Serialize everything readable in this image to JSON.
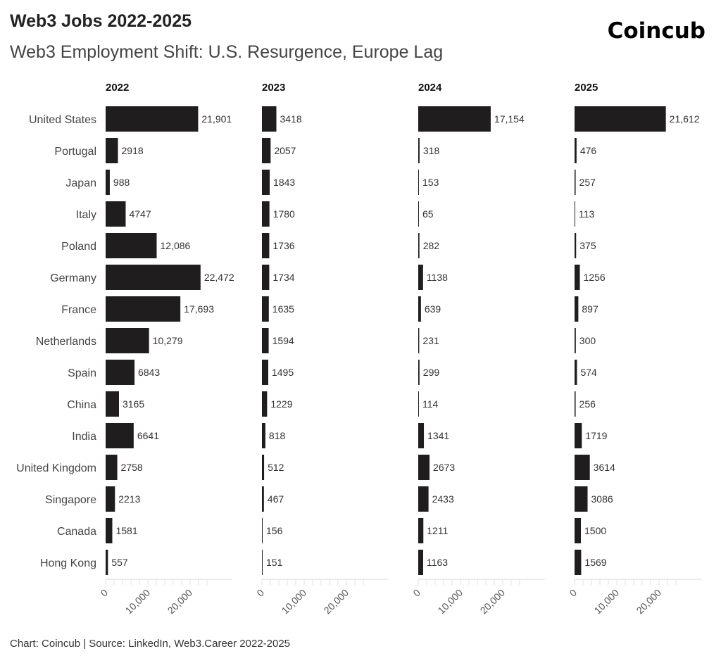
{
  "header": {
    "title": "Web3 Jobs 2022-2025",
    "subtitle": "Web3 Employment Shift: U.S. Resurgence, Europe Lag",
    "logo": "Coincub"
  },
  "footer": "Chart: Coincub | Source: LinkedIn, Web3.Career 2022-2025",
  "chart_data": {
    "type": "bar",
    "orientation": "horizontal",
    "bar_color": "#1f1d1e",
    "categories": [
      "United States",
      "Portugal",
      "Japan",
      "Italy",
      "Poland",
      "Germany",
      "France",
      "Netherlands",
      "Spain",
      "China",
      "India",
      "United Kingdom",
      "Singapore",
      "Canada",
      "Hong Kong"
    ],
    "panels": [
      {
        "name": "2022",
        "values": [
          21901,
          2918,
          988,
          4747,
          12086,
          22472,
          17693,
          10279,
          6843,
          3165,
          6641,
          2758,
          2213,
          1581,
          557
        ],
        "labels": [
          "21,901",
          "2918",
          "988",
          "4747",
          "12,086",
          "22,472",
          "17,693",
          "10,279",
          "6843",
          "3165",
          "6641",
          "2758",
          "2213",
          "1581",
          "557"
        ]
      },
      {
        "name": "2023",
        "values": [
          3418,
          2057,
          1843,
          1780,
          1736,
          1734,
          1635,
          1594,
          1495,
          1229,
          818,
          512,
          467,
          156,
          151
        ],
        "labels": [
          "3418",
          "2057",
          "1843",
          "1780",
          "1736",
          "1734",
          "1635",
          "1594",
          "1495",
          "1229",
          "818",
          "512",
          "467",
          "156",
          "151"
        ]
      },
      {
        "name": "2024",
        "values": [
          17154,
          318,
          153,
          65,
          282,
          1138,
          639,
          231,
          299,
          114,
          1341,
          2673,
          2433,
          1211,
          1163
        ],
        "labels": [
          "17,154",
          "318",
          "153",
          "65",
          "282",
          "1138",
          "639",
          "231",
          "299",
          "114",
          "1341",
          "2673",
          "2433",
          "1211",
          "1163"
        ]
      },
      {
        "name": "2025",
        "values": [
          21612,
          476,
          257,
          113,
          375,
          1256,
          897,
          300,
          574,
          256,
          1719,
          3614,
          3086,
          1500,
          1569
        ],
        "labels": [
          "21,612",
          "476",
          "257",
          "113",
          "375",
          "1256",
          "897",
          "300",
          "574",
          "256",
          "1719",
          "3614",
          "3086",
          "1500",
          "1569"
        ]
      }
    ],
    "xlim": [
      0,
      30000
    ],
    "xticks": [
      0,
      10000,
      20000
    ],
    "xtick_labels": [
      "0",
      "10,000",
      "20,000"
    ]
  }
}
